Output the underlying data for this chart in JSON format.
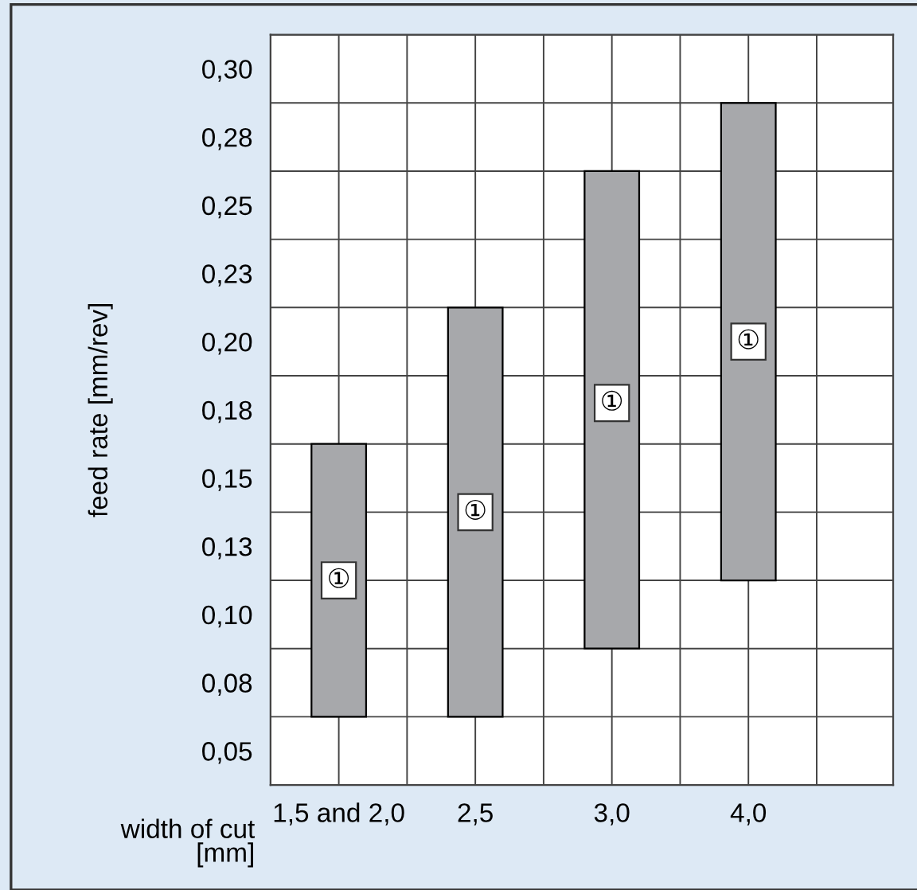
{
  "chart_data": {
    "type": "bar",
    "ylabel": "feed rate [mm/rev]",
    "xlabel": "width of cut\n[mm]",
    "categories": [
      "1,5 and 2,0",
      "2,5",
      "3,0",
      "4,0"
    ],
    "base": [
      0.0625,
      0.0625,
      0.0875,
      0.1125
    ],
    "values": [
      0.1,
      0.15,
      0.175,
      0.175
    ],
    "color": "#a7a8ab",
    "ylim": [
      0.0375,
      0.3125
    ],
    "yticks": [
      {
        "value": 0.05,
        "label": "0,05"
      },
      {
        "value": 0.075,
        "label": "0,08"
      },
      {
        "value": 0.1,
        "label": "0,10"
      },
      {
        "value": 0.125,
        "label": "0,13"
      },
      {
        "value": 0.15,
        "label": "0,15"
      },
      {
        "value": 0.175,
        "label": "0,18"
      },
      {
        "value": 0.2,
        "label": "0,20"
      },
      {
        "value": 0.225,
        "label": "0,23"
      },
      {
        "value": 0.25,
        "label": "0,25"
      },
      {
        "value": 0.275,
        "label": "0,28"
      },
      {
        "value": 0.3,
        "label": "0,30"
      },
      {
        "value": 0.0375,
        "label": null
      },
      {
        "value": 0.0625,
        "label": null
      },
      {
        "value": 0.0875,
        "label": null
      },
      {
        "value": 0.1125,
        "label": null
      },
      {
        "value": 0.1375,
        "label": null
      },
      {
        "value": 0.1625,
        "label": null
      },
      {
        "value": 0.1875,
        "label": null
      },
      {
        "value": 0.2125,
        "label": null
      },
      {
        "value": 0.2375,
        "label": null
      },
      {
        "value": 0.2625,
        "label": null
      },
      {
        "value": 0.2875,
        "label": null
      },
      {
        "value": 0.3125,
        "label": null
      }
    ],
    "grid": true,
    "annotations": [
      {
        "text": "①",
        "x": "1,5 and 2,0",
        "y": 0.1125
      },
      {
        "text": "①",
        "x": "2,5",
        "y": 0.1375
      },
      {
        "text": "①",
        "x": "3,0",
        "y": 0.1775
      },
      {
        "text": "①",
        "x": "4,0",
        "y": 0.2
      }
    ]
  }
}
